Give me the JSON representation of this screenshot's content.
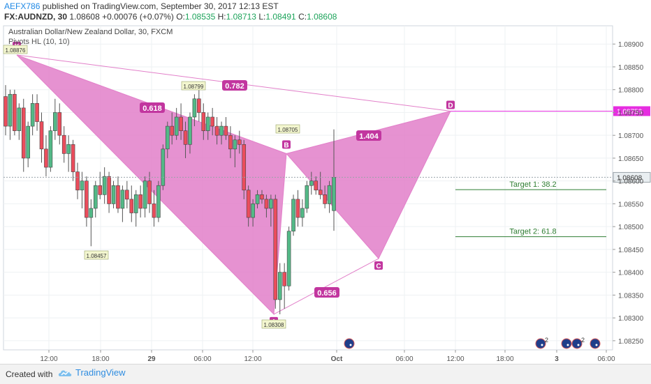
{
  "header": {
    "author": "AEFX786",
    "published": "published on TradingView.com, September 30, 2017 12:13 EST",
    "symbol": "FX:AUDNZD, 30",
    "last": "1.08608",
    "change": "+0.00076 (+0.07%)",
    "o_label": "O:",
    "o_value": "1.08535",
    "h_label": "H:",
    "h_value": "1.08713",
    "l_label": "L:",
    "l_value": "1.08491",
    "c_label": "C:",
    "c_value": "1.08608"
  },
  "footer": {
    "created": "Created with",
    "brand": "TradingView"
  },
  "chart_data": {
    "type": "candlestick",
    "title": "Australian Dollar/New Zealand Dollar, 30, FXCM",
    "indicator": "Pivots HL (10, 10)",
    "y_ticks": [
      "1.08900",
      "1.08850",
      "1.08800",
      "1.08750",
      "1.08700",
      "1.08650",
      "1.08600",
      "1.08550",
      "1.08500",
      "1.08450",
      "1.08400",
      "1.08350",
      "1.08300",
      "1.08250"
    ],
    "ylim": [
      1.0823,
      1.0894
    ],
    "x_ticks": [
      "12:00",
      "18:00",
      "29",
      "06:00",
      "12:00",
      "Oct",
      "06:00",
      "12:00",
      "18:00",
      "3",
      "06:00"
    ],
    "current_price": "1.08608",
    "level_d_label": "1.08753",
    "pivots": [
      {
        "label": "1.08876",
        "x": "Sep 28 06:30",
        "price": 1.08876
      },
      {
        "label": "1.08799",
        "x": "Sep 29 04:30",
        "price": 1.08799
      },
      {
        "label": "1.08705",
        "x": "Sep 29 15:00",
        "price": 1.08705
      },
      {
        "label": "1.08457",
        "x": "Sep 28 18:00",
        "price": 1.08457
      },
      {
        "label": "1.08308",
        "x": "Sep 29 14:00",
        "price": 1.08308
      }
    ],
    "pattern": {
      "points": [
        {
          "name": "X",
          "price": 1.08876
        },
        {
          "name": "A",
          "price": 1.08308
        },
        {
          "name": "B",
          "price": 1.0866
        },
        {
          "name": "C",
          "price": 1.0843
        },
        {
          "name": "D",
          "price": 1.08753
        }
      ],
      "ratios": [
        "0.618",
        "0.782",
        "0.656",
        "1.404"
      ],
      "color": "#e27fc9"
    },
    "targets": [
      {
        "label": "Target 1: 38.2",
        "price": 1.08581
      },
      {
        "label": "Target 2: 61.8",
        "price": 1.08478
      }
    ],
    "candles": [
      [
        1.08785,
        1.0881,
        1.087,
        1.0872
      ],
      [
        1.0872,
        1.088,
        1.0869,
        1.0879
      ],
      [
        1.0879,
        1.088,
        1.087,
        1.0871
      ],
      [
        1.0871,
        1.0877,
        1.0869,
        1.0876
      ],
      [
        1.0876,
        1.0878,
        1.0862,
        1.0865
      ],
      [
        1.0865,
        1.0873,
        1.0863,
        1.0872
      ],
      [
        1.0872,
        1.0879,
        1.087,
        1.0877
      ],
      [
        1.0877,
        1.0879,
        1.0871,
        1.0873
      ],
      [
        1.0873,
        1.0875,
        1.0864,
        1.0867
      ],
      [
        1.0867,
        1.087,
        1.0861,
        1.0863
      ],
      [
        1.0863,
        1.0872,
        1.0862,
        1.0871
      ],
      [
        1.0871,
        1.0878,
        1.0869,
        1.0875
      ],
      [
        1.0875,
        1.0877,
        1.0868,
        1.087
      ],
      [
        1.087,
        1.0872,
        1.0864,
        1.0866
      ],
      [
        1.0866,
        1.087,
        1.0862,
        1.0868
      ],
      [
        1.0868,
        1.0869,
        1.086,
        1.0862
      ],
      [
        1.0862,
        1.0864,
        1.0856,
        1.0858
      ],
      [
        1.0858,
        1.0862,
        1.0854,
        1.086
      ],
      [
        1.086,
        1.0861,
        1.085,
        1.0852
      ],
      [
        1.0852,
        1.0856,
        1.08457,
        1.0854
      ],
      [
        1.0854,
        1.086,
        1.0852,
        1.0859
      ],
      [
        1.0859,
        1.0862,
        1.0856,
        1.0857
      ],
      [
        1.0857,
        1.0863,
        1.0855,
        1.0861
      ],
      [
        1.0861,
        1.0862,
        1.0853,
        1.0855
      ],
      [
        1.0855,
        1.086,
        1.0854,
        1.0859
      ],
      [
        1.0859,
        1.0861,
        1.0853,
        1.0854
      ],
      [
        1.0854,
        1.0859,
        1.0851,
        1.0858
      ],
      [
        1.0858,
        1.086,
        1.0854,
        1.0856
      ],
      [
        1.0856,
        1.0859,
        1.0851,
        1.0853
      ],
      [
        1.0853,
        1.0858,
        1.085,
        1.0857
      ],
      [
        1.0857,
        1.0859,
        1.0852,
        1.0854
      ],
      [
        1.0854,
        1.0861,
        1.0852,
        1.086
      ],
      [
        1.086,
        1.0862,
        1.0853,
        1.0855
      ],
      [
        1.0855,
        1.0858,
        1.085,
        1.0852
      ],
      [
        1.0852,
        1.086,
        1.0851,
        1.0859
      ],
      [
        1.0859,
        1.0868,
        1.0858,
        1.0867
      ],
      [
        1.0867,
        1.0873,
        1.0865,
        1.0872
      ],
      [
        1.0872,
        1.0875,
        1.0868,
        1.087
      ],
      [
        1.087,
        1.0876,
        1.0869,
        1.0874
      ],
      [
        1.0874,
        1.0877,
        1.0869,
        1.0871
      ],
      [
        1.0871,
        1.0873,
        1.0865,
        1.0868
      ],
      [
        1.0868,
        1.0875,
        1.0866,
        1.0874
      ],
      [
        1.0874,
        1.0879,
        1.0872,
        1.0878
      ],
      [
        1.0878,
        1.08799,
        1.0873,
        1.0875
      ],
      [
        1.0875,
        1.0877,
        1.0869,
        1.0871
      ],
      [
        1.0871,
        1.0875,
        1.0869,
        1.0874
      ],
      [
        1.0874,
        1.0876,
        1.087,
        1.0872
      ],
      [
        1.0872,
        1.0874,
        1.0868,
        1.087
      ],
      [
        1.087,
        1.0873,
        1.0868,
        1.0872
      ],
      [
        1.0872,
        1.0874,
        1.0869,
        1.087
      ],
      [
        1.087,
        1.0872,
        1.0865,
        1.0867
      ],
      [
        1.0867,
        1.087,
        1.0863,
        1.0869
      ],
      [
        1.0869,
        1.0871,
        1.0866,
        1.0868
      ],
      [
        1.0868,
        1.0869,
        1.0856,
        1.0858
      ],
      [
        1.0858,
        1.0859,
        1.085,
        1.0852
      ],
      [
        1.0852,
        1.0856,
        1.085,
        1.0855
      ],
      [
        1.0855,
        1.0858,
        1.0854,
        1.0857
      ],
      [
        1.0857,
        1.0858,
        1.0855,
        1.0856
      ],
      [
        1.0856,
        1.0857,
        1.0852,
        1.0854
      ],
      [
        1.0854,
        1.0857,
        1.085,
        1.0856
      ],
      [
        1.0856,
        1.0857,
        1.0832,
        1.0834
      ],
      [
        1.0834,
        1.0842,
        1.08308,
        1.084
      ],
      [
        1.084,
        1.0842,
        1.0832,
        1.0837
      ],
      [
        1.0837,
        1.085,
        1.0836,
        1.0849
      ],
      [
        1.0849,
        1.0857,
        1.0848,
        1.0856
      ],
      [
        1.0856,
        1.0858,
        1.085,
        1.0852
      ],
      [
        1.0852,
        1.0856,
        1.085,
        1.0854
      ],
      [
        1.0854,
        1.086,
        1.0853,
        1.0859
      ],
      [
        1.0859,
        1.0862,
        1.0857,
        1.086
      ],
      [
        1.086,
        1.0861,
        1.0857,
        1.0858
      ],
      [
        1.0858,
        1.0862,
        1.0856,
        1.0857
      ],
      [
        1.0857,
        1.0859,
        1.0854,
        1.0855
      ],
      [
        1.0855,
        1.086,
        1.0853,
        1.0859
      ],
      [
        1.08535,
        1.08713,
        1.08491,
        1.08608
      ]
    ]
  }
}
